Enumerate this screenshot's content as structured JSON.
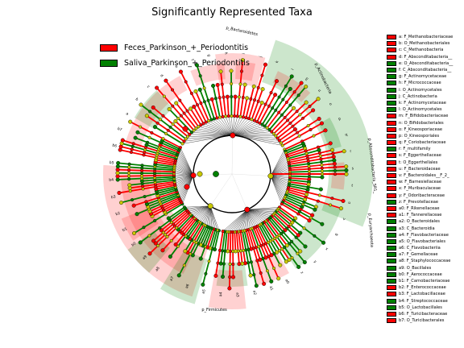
{
  "title": "Significantly Represented Taxa",
  "groups": [
    {
      "name": "Feces_Parkinson_+_Periodontitis",
      "color": "#ff0000"
    },
    {
      "name": "Saliva_Parkinson_+_Periodontitis",
      "color": "#008000"
    }
  ],
  "taxa_legend": [
    {
      "label": "a: F_Methanobacteriaceae",
      "group": 0
    },
    {
      "label": "b: O_Methanobacteriales",
      "group": 0
    },
    {
      "label": "c: C_Methanobacteria",
      "group": 0
    },
    {
      "label": "d: F_Absconditabacteria__",
      "group": 0
    },
    {
      "label": "e: O_Absconditabacteria__",
      "group": 1
    },
    {
      "label": "f: C_Absconditabacteria__",
      "group": 1
    },
    {
      "label": "g: F_Actinomycetaceae",
      "group": 1
    },
    {
      "label": "h: F_Micrococcaceae",
      "group": 1
    },
    {
      "label": "i: O_Actinomycetales",
      "group": 1
    },
    {
      "label": "j: C_Actinobacteria",
      "group": 1
    },
    {
      "label": "k: F_Actinomycetaceae",
      "group": 1
    },
    {
      "label": "l: O_Actinomycetales",
      "group": 1
    },
    {
      "label": "m: F_Bifidobacteriaceae",
      "group": 0
    },
    {
      "label": "n: O_Bifidobacteriales",
      "group": 0
    },
    {
      "label": "o: F_Kineosporiaceae",
      "group": 0
    },
    {
      "label": "p: O_Kineosporiales",
      "group": 0
    },
    {
      "label": "q: F_Coriobacteriaceae",
      "group": 0
    },
    {
      "label": "r: F_multifamily",
      "group": 1
    },
    {
      "label": "s: F_Eggerthellaceae",
      "group": 0
    },
    {
      "label": "t: O_Eggerthellales",
      "group": 0
    },
    {
      "label": "u: F_Bacteroidaceae",
      "group": 0
    },
    {
      "label": "v: F_Bacteroidales__F_2_",
      "group": 0
    },
    {
      "label": "w: F_Barnesiellaceae",
      "group": 0
    },
    {
      "label": "x: F_Muribaculaceae",
      "group": 0
    },
    {
      "label": "y: F_Odoribacteraceae",
      "group": 0
    },
    {
      "label": "z: F_Prevotellaceae",
      "group": 1
    },
    {
      "label": "a0: F_Rikenellaceae",
      "group": 0
    },
    {
      "label": "a1: F_Tannerellaceae",
      "group": 0
    },
    {
      "label": "a2: O_Bacteroidales",
      "group": 1
    },
    {
      "label": "a3: C_Bacteroidia",
      "group": 1
    },
    {
      "label": "a4: F_Flavobacteriaceae",
      "group": 1
    },
    {
      "label": "a5: O_Flavobacteriales",
      "group": 1
    },
    {
      "label": "a6: C_Flavobacteriia",
      "group": 1
    },
    {
      "label": "a7: F_Gemellaceae",
      "group": 1
    },
    {
      "label": "a8: F_Staphylococcaceae",
      "group": 1
    },
    {
      "label": "a9: O_Bacillales",
      "group": 1
    },
    {
      "label": "b0: F_Aerococcaceae",
      "group": 1
    },
    {
      "label": "b1: F_Carnobacteriaceae",
      "group": 1
    },
    {
      "label": "b2: F_Enterococcaceae",
      "group": 0
    },
    {
      "label": "b3: F_Lactobacillaceae",
      "group": 0
    },
    {
      "label": "b4: F_Streptococcaceae",
      "group": 1
    },
    {
      "label": "b5: O_Lactobacillales",
      "group": 1
    },
    {
      "label": "b6: F_Turicibacteraceae",
      "group": 0
    },
    {
      "label": "b7: O_Turicibacterales",
      "group": 0
    }
  ],
  "clade_labels": [
    {
      "text": "p_Bacteroidetes"
    },
    {
      "text": "p_Actinobacteria"
    },
    {
      "text": "p_Absconditabacteria_SR1_"
    },
    {
      "text": "p_Euryarchaeota"
    },
    {
      "text": "p_Firmicutes"
    }
  ],
  "chart_data": {
    "type": "cladogram",
    "title": "Significantly Represented Taxa",
    "layout": "radial",
    "legend_position": "top-left",
    "groups": [
      "Feces_Parkinson_+_Periodontitis",
      "Saliva_Parkinson_+_Periodontitis"
    ]
  }
}
